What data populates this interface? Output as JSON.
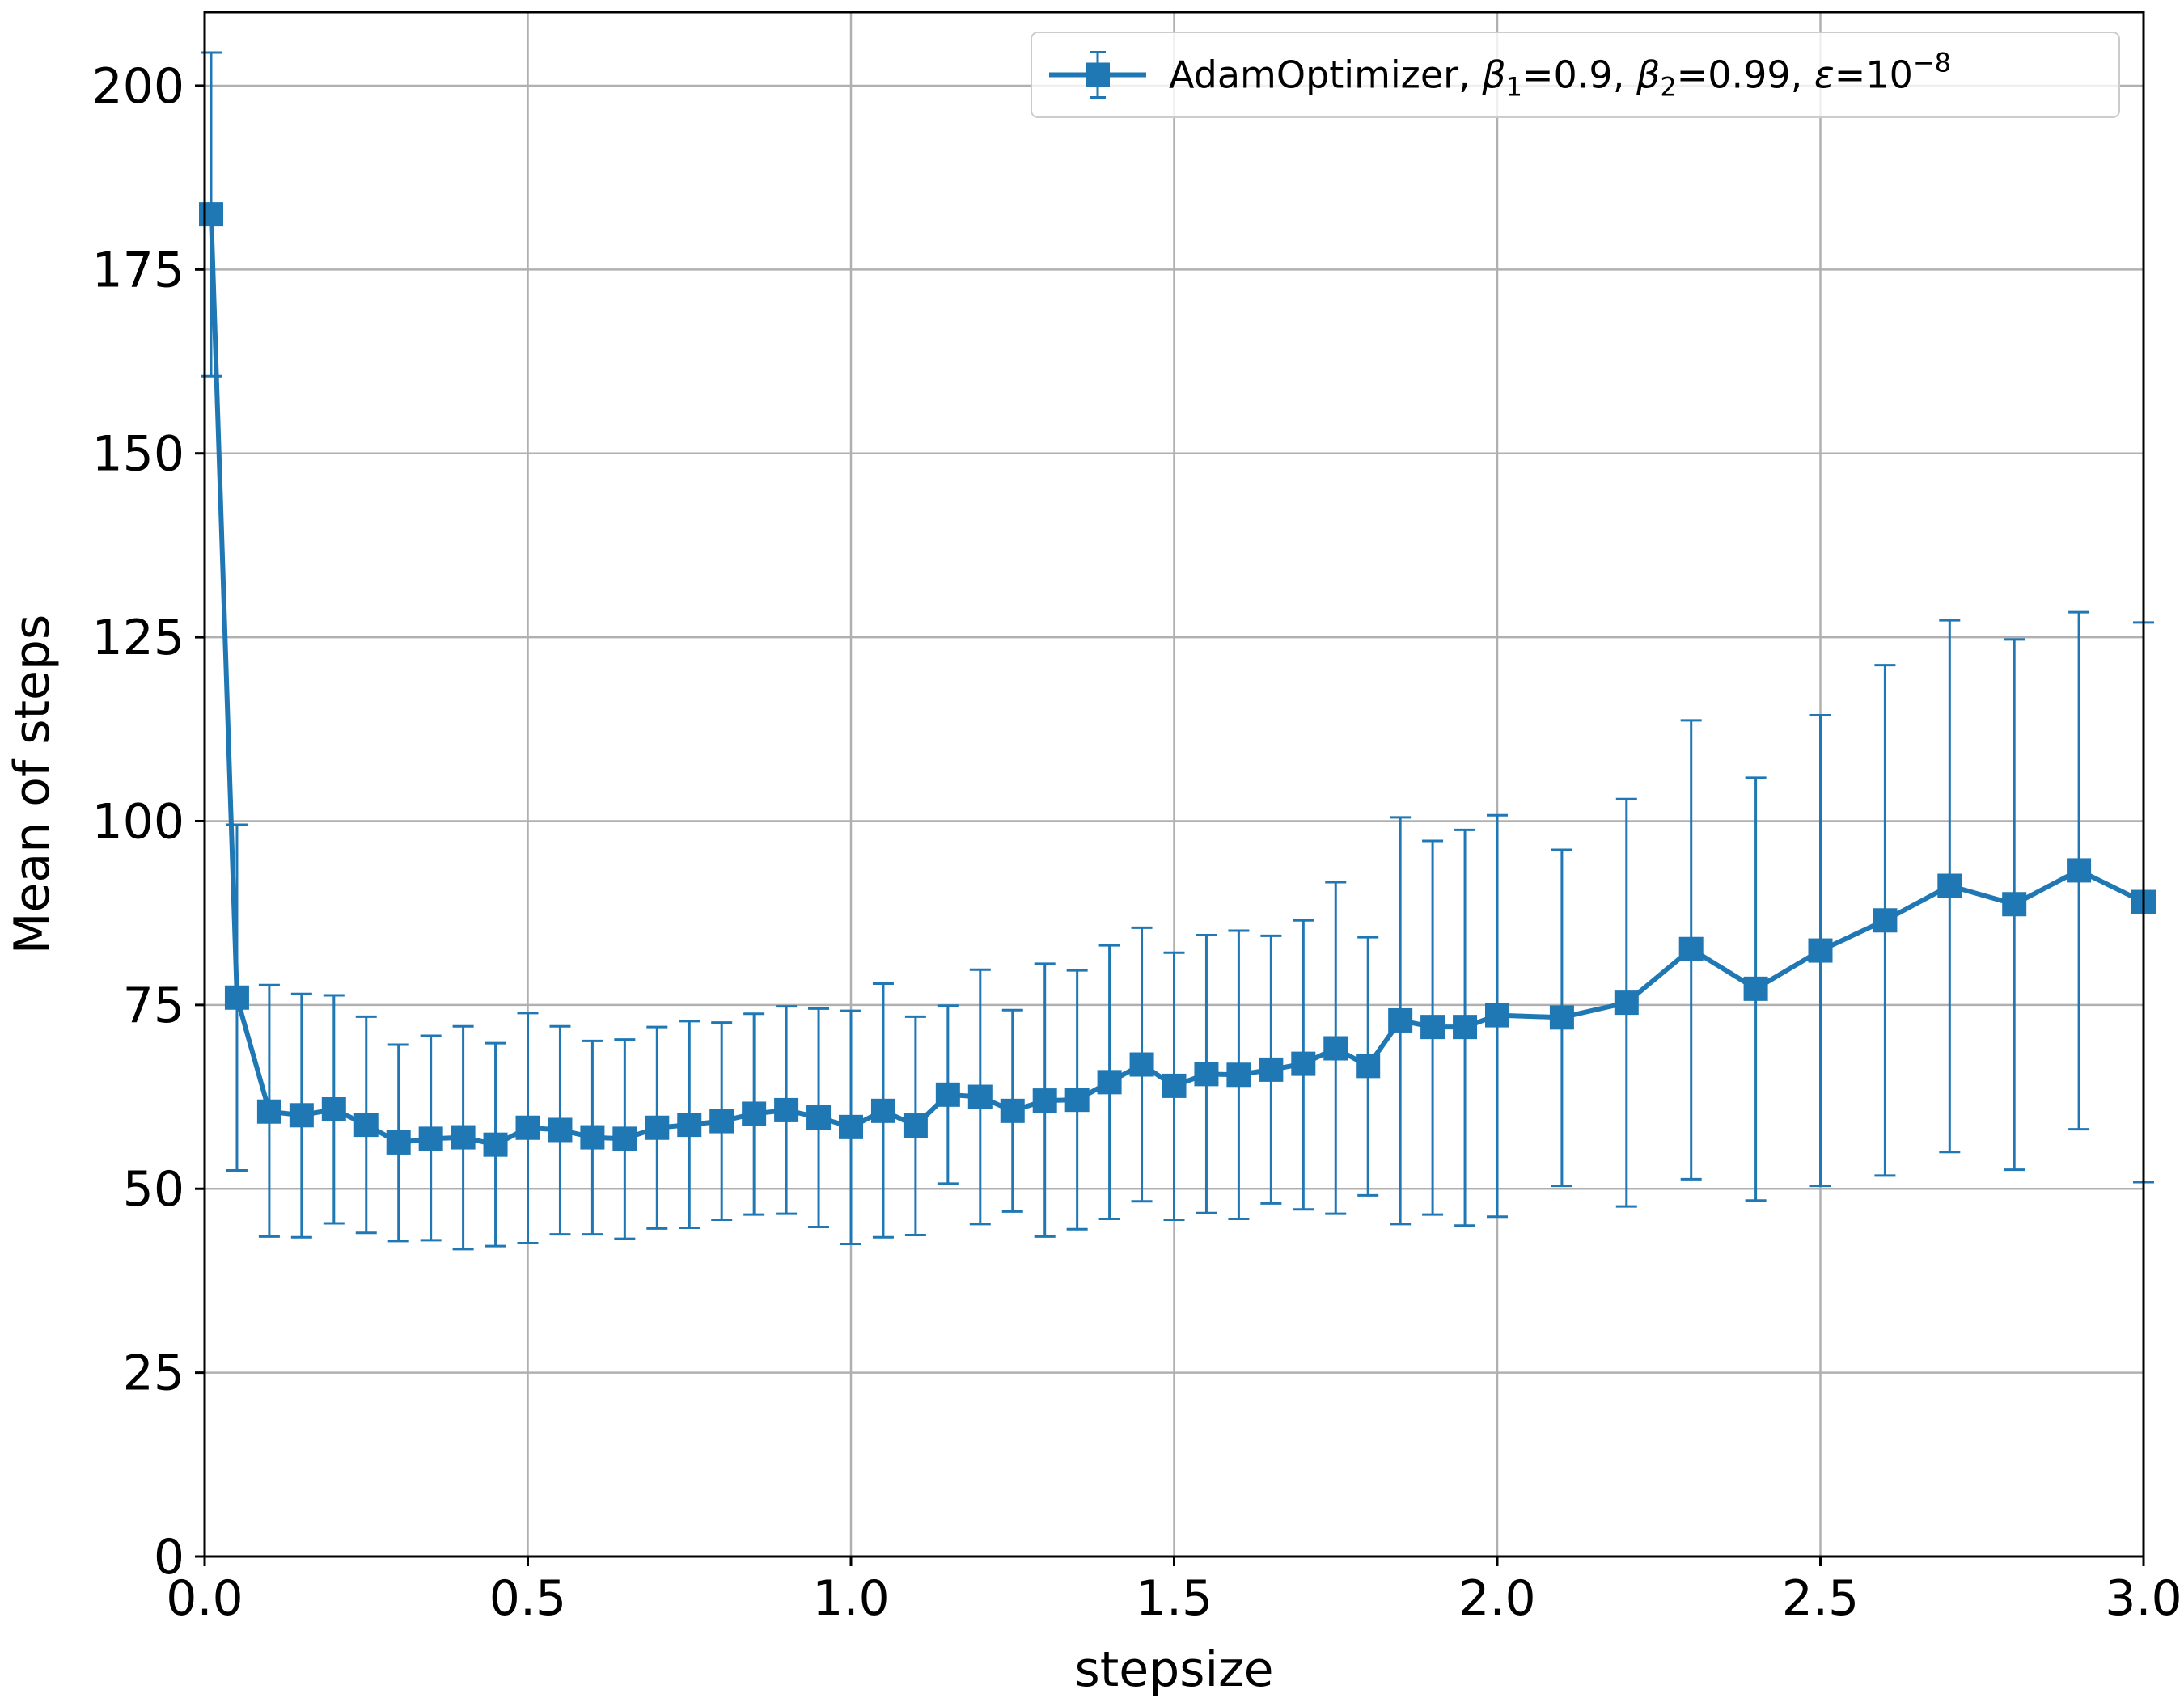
{
  "chart_data": {
    "type": "line",
    "title": "",
    "xlabel": "stepsize",
    "ylabel": "Mean of steps",
    "xlim": [
      0.0,
      3.0
    ],
    "ylim": [
      0,
      210
    ],
    "grid": true,
    "legend_position": "top-right",
    "xticks": [
      "0.0",
      "0.5",
      "1.0",
      "1.5",
      "2.0",
      "2.5",
      "3.0"
    ],
    "xtick_values": [
      0.0,
      0.5,
      1.0,
      1.5,
      2.0,
      2.5,
      3.0
    ],
    "yticks": [
      "0",
      "25",
      "50",
      "75",
      "100",
      "125",
      "150",
      "175",
      "200"
    ],
    "ytick_values": [
      0,
      25,
      50,
      75,
      100,
      125,
      150,
      175,
      200
    ],
    "colors": {
      "series": "#1f77b4",
      "grid": "#b0b0b0"
    },
    "series": [
      {
        "name": "AdamOptimizer, β1=0.9, β2=0.99, ε=10−8",
        "legend_parts": {
          "prefix": "AdamOptimizer, ",
          "beta1_symbol": "β",
          "beta1_sub": "1",
          "beta1_value": "=0.9, ",
          "beta2_symbol": "β",
          "beta2_sub": "2",
          "beta2_value": "=0.99, ",
          "eps_symbol": "ε",
          "eps_value": "=10",
          "eps_exp": "−8"
        },
        "marker": "square",
        "x": [
          0.01,
          0.05,
          0.1,
          0.15,
          0.2,
          0.25,
          0.3,
          0.35,
          0.4,
          0.45,
          0.5,
          0.55,
          0.6,
          0.65,
          0.7,
          0.75,
          0.8,
          0.85,
          0.9,
          0.95,
          1.0,
          1.05,
          1.1,
          1.15,
          1.2,
          1.25,
          1.3,
          1.35,
          1.4,
          1.45,
          1.5,
          1.55,
          1.6,
          1.65,
          1.7,
          1.75,
          1.8,
          1.85,
          1.9,
          1.95,
          2.0,
          2.1,
          2.2,
          2.3,
          2.4,
          2.5,
          2.6,
          2.7,
          2.8,
          2.9,
          3.0
        ],
        "y": [
          182.5,
          76.0,
          60.5,
          60.0,
          60.8,
          58.7,
          56.3,
          56.8,
          57.0,
          56.0,
          58.3,
          58.0,
          57.0,
          56.8,
          58.3,
          58.7,
          59.2,
          60.2,
          60.7,
          59.7,
          58.4,
          60.6,
          58.6,
          62.8,
          62.5,
          60.6,
          62.0,
          62.1,
          64.5,
          66.9,
          64.0,
          65.6,
          65.5,
          66.2,
          67.0,
          69.1,
          66.7,
          72.9,
          72.0,
          72.0,
          73.6,
          73.3,
          75.3,
          82.6,
          77.2,
          82.4,
          86.5,
          91.2,
          88.7,
          93.3,
          89.0
        ],
        "err_upper": [
          204.5,
          99.5,
          77.7,
          76.5,
          76.3,
          73.4,
          69.6,
          70.8,
          72.1,
          69.8,
          73.9,
          72.1,
          70.1,
          70.3,
          72.0,
          72.8,
          72.6,
          73.8,
          74.8,
          74.5,
          74.2,
          77.9,
          73.4,
          74.9,
          79.8,
          74.3,
          80.6,
          79.7,
          83.1,
          85.5,
          82.1,
          84.5,
          85.1,
          84.4,
          86.5,
          91.7,
          84.2,
          100.5,
          97.3,
          98.8,
          100.8,
          96.1,
          103.0,
          113.7,
          105.9,
          114.4,
          121.2,
          127.3,
          124.7,
          128.4,
          127.0
        ],
        "err_lower": [
          160.5,
          52.5,
          43.5,
          43.4,
          45.3,
          44.0,
          42.9,
          43.0,
          41.8,
          42.2,
          42.6,
          43.8,
          43.8,
          43.2,
          44.6,
          44.7,
          45.8,
          46.5,
          46.6,
          44.8,
          42.5,
          43.4,
          43.7,
          50.7,
          45.2,
          46.9,
          43.5,
          44.5,
          45.9,
          48.3,
          45.8,
          46.7,
          45.9,
          48.0,
          47.2,
          46.6,
          49.1,
          45.2,
          46.5,
          45.0,
          46.2,
          50.4,
          47.6,
          51.3,
          48.4,
          50.4,
          51.8,
          55.0,
          52.6,
          58.1,
          50.9
        ]
      }
    ]
  }
}
